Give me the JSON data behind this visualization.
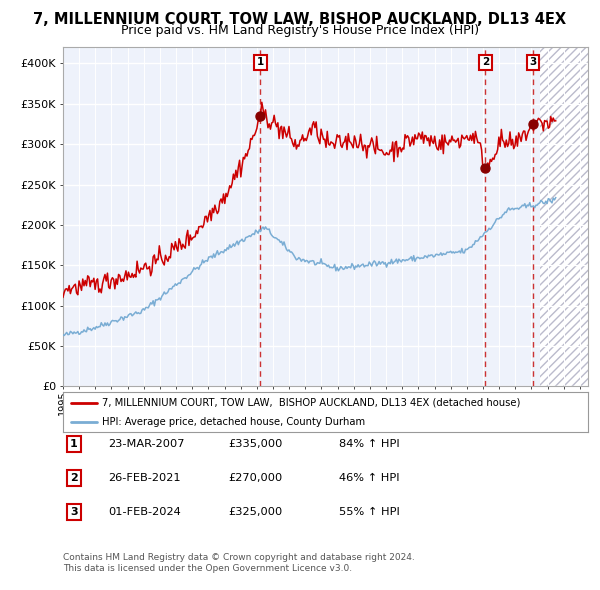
{
  "title": "7, MILLENNIUM COURT, TOW LAW, BISHOP AUCKLAND, DL13 4EX",
  "subtitle": "Price paid vs. HM Land Registry's House Price Index (HPI)",
  "title_fontsize": 10.5,
  "subtitle_fontsize": 9,
  "red_label": "7, MILLENNIUM COURT, TOW LAW,  BISHOP AUCKLAND, DL13 4EX (detached house)",
  "blue_label": "HPI: Average price, detached house, County Durham",
  "footer1": "Contains HM Land Registry data © Crown copyright and database right 2024.",
  "footer2": "This data is licensed under the Open Government Licence v3.0.",
  "transactions": [
    {
      "num": "1",
      "date": "23-MAR-2007",
      "price": "£335,000",
      "pct": "84% ↑ HPI",
      "x_year": 2007.22
    },
    {
      "num": "2",
      "date": "26-FEB-2021",
      "price": "£270,000",
      "pct": "46% ↑ HPI",
      "x_year": 2021.15
    },
    {
      "num": "3",
      "date": "01-FEB-2024",
      "price": "£325,000",
      "pct": "55% ↑ HPI",
      "x_year": 2024.08
    }
  ],
  "transaction_prices": [
    335000,
    270000,
    325000
  ],
  "xlim": [
    1995.0,
    2027.5
  ],
  "ylim": [
    0,
    420000
  ],
  "yticks": [
    0,
    50000,
    100000,
    150000,
    200000,
    250000,
    300000,
    350000,
    400000
  ],
  "xticks": [
    1995,
    1996,
    1997,
    1998,
    1999,
    2000,
    2001,
    2002,
    2003,
    2004,
    2005,
    2006,
    2007,
    2008,
    2009,
    2010,
    2011,
    2012,
    2013,
    2014,
    2015,
    2016,
    2017,
    2018,
    2019,
    2020,
    2021,
    2022,
    2023,
    2024,
    2025,
    2026,
    2027
  ],
  "bg_color": "#eef2fb",
  "grid_color": "#ffffff",
  "red_color": "#cc0000",
  "blue_color": "#7aadd4",
  "dot_color": "#880000",
  "dashed_color": "#cc3333",
  "box_edge_color": "#cc0000",
  "spine_color": "#aaaaaa",
  "legend_border_color": "#999999",
  "footer_color": "#555555"
}
